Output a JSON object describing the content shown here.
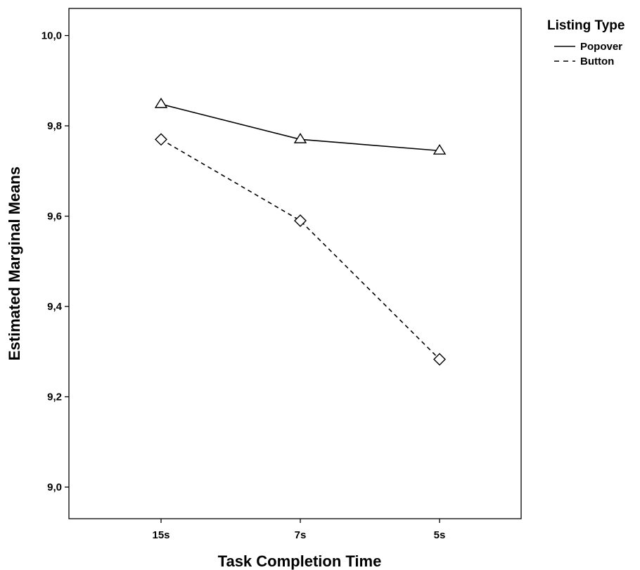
{
  "chart_data": {
    "type": "line",
    "title": "",
    "xlabel": "Task Completion Time",
    "ylabel": "Estimated Marginal Means",
    "categories": [
      "15s",
      "7s",
      "5s"
    ],
    "ylim": [
      8.93,
      10.06
    ],
    "y_ticks": [
      "9,0",
      "9,2",
      "9,4",
      "9,6",
      "9,8",
      "10,0"
    ],
    "y_tick_values": [
      9.0,
      9.2,
      9.4,
      9.6,
      9.8,
      10.0
    ],
    "grid": false,
    "legend": {
      "title": "Listing Type",
      "placement": "top-right outside plot"
    },
    "series": [
      {
        "name": "Popover",
        "values": [
          9.848,
          9.77,
          9.745
        ],
        "line_style": "solid",
        "marker": "triangle"
      },
      {
        "name": "Button",
        "values": [
          9.77,
          9.59,
          9.283
        ],
        "line_style": "dashed",
        "marker": "diamond"
      }
    ]
  }
}
